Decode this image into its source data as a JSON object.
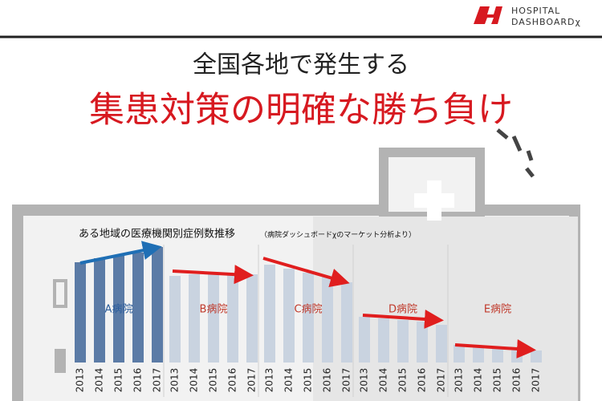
{
  "header": {
    "logo_line1": "HOSPITAL",
    "logo_line2": "DASHBOARDχ"
  },
  "headline": {
    "line1": "全国各地で発生する",
    "line2": "集患対策の明確な勝ち負け"
  },
  "chart_data": {
    "type": "bar",
    "title": "ある地域の医療機関別症例数推移",
    "subtitle": "（病院ダッシュボードχのマーケット分析より）",
    "categories": [
      "2013",
      "2014",
      "2015",
      "2016",
      "2017"
    ],
    "series": [
      {
        "name": "A病院",
        "color": "#5b7ba6",
        "values": [
          125,
          130,
          134,
          137,
          144
        ]
      },
      {
        "name": "B病院",
        "color": "#c9d3e0",
        "values": [
          108,
          110,
          112,
          110,
          110
        ]
      },
      {
        "name": "C病院",
        "color": "#c9d3e0",
        "values": [
          122,
          117,
          112,
          107,
          100
        ]
      },
      {
        "name": "D病院",
        "color": "#c9d3e0",
        "values": [
          57,
          55,
          53,
          51,
          47
        ]
      },
      {
        "name": "E病院",
        "color": "#c9d3e0",
        "values": [
          22,
          20,
          19,
          18,
          15
        ]
      }
    ],
    "ylim": [
      0,
      160
    ]
  }
}
